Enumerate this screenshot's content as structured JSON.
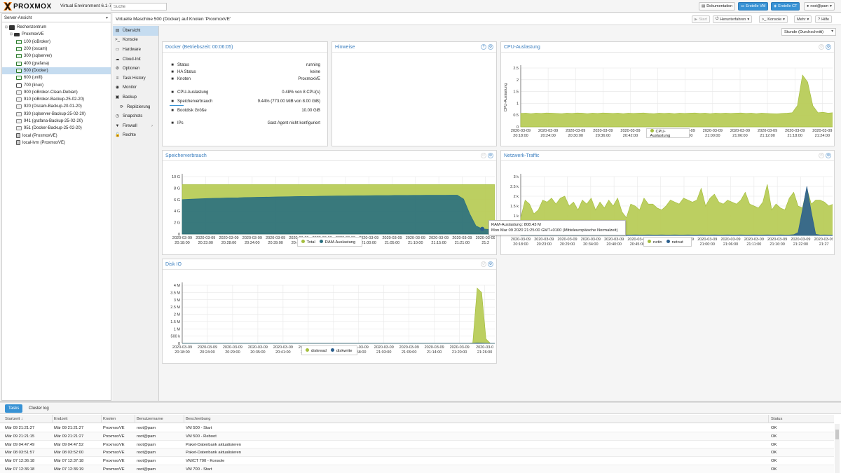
{
  "header": {
    "logo_text": "PROXMOX",
    "version": "Virtual Environment 6.1-7",
    "search_placeholder": "Suche",
    "buttons": {
      "docs": "Dokumentation",
      "create_vm": "Erstelle VM",
      "create_ct": "Erstelle CT",
      "user": "root@pam"
    }
  },
  "tree": {
    "view_select": "Server-Ansicht",
    "datacenter": "Rechenzentrum",
    "node": "ProxmoxVE",
    "vms": [
      {
        "label": "100 (ioBroker)",
        "state": "run"
      },
      {
        "label": "200 (oscam)",
        "state": "run"
      },
      {
        "label": "300 (sqlserver)",
        "state": "run"
      },
      {
        "label": "400 (grafana)",
        "state": "run"
      },
      {
        "label": "500 (Docker)",
        "state": "run",
        "selected": true
      },
      {
        "label": "600 (unifi)",
        "state": "run"
      },
      {
        "label": "700 (linux)",
        "state": "stop"
      },
      {
        "label": "900 (ioBroker-Clean-Debian)",
        "state": "tpl"
      },
      {
        "label": "910 (ioBroker-Backup-25-02-20)",
        "state": "tpl"
      },
      {
        "label": "920 (Oscam-Backup-20-01-20)",
        "state": "tpl"
      },
      {
        "label": "930 (sqlserver-Backup-25-02-20)",
        "state": "tpl"
      },
      {
        "label": "941 (grafana-Backup-25-02-20)",
        "state": "tpl"
      },
      {
        "label": "951 (Docker-Backup-25-02-20)",
        "state": "tpl"
      }
    ],
    "storages": [
      "local (ProxmoxVE)",
      "local-lvm (ProxmoxVE)"
    ]
  },
  "toolbar": {
    "title": "Virtuelle Maschine 500 (Docker) auf Knoten 'ProxmoxVE'",
    "start": "Start",
    "shutdown": "Herunterfahren",
    "console": "Konsole",
    "more": "Mehr",
    "help": "Hilfe"
  },
  "subnav": [
    {
      "label": "Übersicht",
      "icon": "book-icon",
      "glyph": "▤"
    },
    {
      "label": "Konsole",
      "icon": "terminal-icon",
      "glyph": ">_"
    },
    {
      "label": "Hardware",
      "icon": "desktop-icon",
      "glyph": "▭"
    },
    {
      "label": "Cloud-Init",
      "icon": "cloud-icon",
      "glyph": "☁"
    },
    {
      "label": "Optionen",
      "icon": "gear-icon",
      "glyph": "⚙"
    },
    {
      "label": "Task History",
      "icon": "list-icon",
      "glyph": "≡"
    },
    {
      "label": "Monitor",
      "icon": "eye-icon",
      "glyph": "◉"
    },
    {
      "label": "Backup",
      "icon": "floppy-icon",
      "glyph": "▣"
    },
    {
      "label": "Replizierung",
      "icon": "retweet-icon",
      "glyph": "⟳"
    },
    {
      "label": "Snapshots",
      "icon": "history-icon",
      "glyph": "◷"
    },
    {
      "label": "Firewall",
      "icon": "shield-icon",
      "glyph": "▼"
    },
    {
      "label": "Rechte",
      "icon": "unlock-icon",
      "glyph": "🔓"
    }
  ],
  "timeframe": "Stunde (Durchschnitt)",
  "status_panel": {
    "title": "Docker (Betriebszeit: 00:06:05)",
    "rows": [
      {
        "icon": "info-icon",
        "label": "Status",
        "value": "running"
      },
      {
        "icon": "heartbeat-icon",
        "label": "HA Status",
        "value": "keine"
      },
      {
        "icon": "building-icon",
        "label": "Knoten",
        "value": "ProxmoxVE"
      },
      {
        "icon": "cpu-icon",
        "label": "CPU-Auslastung",
        "value": "0.48% von 8 CPU(s)"
      },
      {
        "icon": "memory-icon",
        "label": "Speicherverbrauch",
        "value": "9.44% (773.00 MiB von 8.00 GiB)"
      },
      {
        "icon": "hdd-icon",
        "label": "Bootdisk Größe",
        "value": "10.00 GiB"
      },
      {
        "icon": "exchange-icon",
        "label": "IPs",
        "value": "Gast Agent nicht konfiguriert"
      }
    ]
  },
  "notes_panel": {
    "title": "Hinweise"
  },
  "tooltip": {
    "line1": "RAM-Auslastung: 808.43 M",
    "line2": "Mon Mar 09 2020 21:25:00 GMT+0100 (Mitteleuropäische Normalzeit)"
  },
  "colors": {
    "green": "#a5be3e",
    "green_fill": "#b8cc58",
    "teal": "#2a6f80",
    "navy": "#2b5f8e",
    "accent": "#3892d4"
  },
  "chart_data": [
    {
      "type": "area",
      "title": "CPU-Auslastung",
      "ylabel": "CPU-Auslastung",
      "ylim": [
        0,
        2.5
      ],
      "yticks": [
        "0",
        "0.5",
        "1",
        "1.5",
        "2",
        "2.5"
      ],
      "xticks": [
        "2020-03-09\n20:18:00",
        "2020-03-09\n20:24:00",
        "2020-03-09\n20:30:00",
        "2020-03-09\n20:36:00",
        "2020-03-09\n20:42:00",
        "2020-03-09\n20:48:00",
        "2020-03-09\n20:54:00",
        "2020-03-09\n21:00:00",
        "2020-03-09\n21:06:00",
        "2020-03-09\n21:12:00",
        "2020-03-09\n21:18:00",
        "2020-03-09\n21:24:00"
      ],
      "grid": true,
      "series": [
        {
          "name": "CPU-Auslastung",
          "color": "#a5be3e",
          "values": [
            0.57,
            0.58,
            0.56,
            0.58,
            0.57,
            0.59,
            0.58,
            0.57,
            0.56,
            0.58,
            0.57,
            0.59,
            0.58,
            0.56,
            0.58,
            0.57,
            0.59,
            0.58,
            0.57,
            0.58,
            0.56,
            0.58,
            0.57,
            0.58,
            0.59,
            0.57,
            0.56,
            0.58,
            0.57,
            0.58,
            0.56,
            0.58,
            0.57,
            0.58,
            0.59,
            0.57,
            0.58,
            0.56,
            0.58,
            0.57,
            0.58,
            0.57,
            0.58,
            0.59,
            0.57,
            0.58,
            0.56,
            0.58,
            0.57,
            0.56,
            0.55,
            0.57,
            0.58,
            0.6,
            0.9,
            2.2,
            1.9,
            0.9,
            0.6,
            0.62,
            0.58,
            0.6
          ]
        }
      ]
    },
    {
      "type": "area",
      "title": "Speicherverbrauch",
      "ylim": [
        0,
        10
      ],
      "yunit": "G",
      "yticks": [
        "0",
        "2 G",
        "4 G",
        "6 G",
        "8 G",
        "10 G"
      ],
      "xticks": [
        "2020-03-09\n20:18:00",
        "2020-03-09\n20:23:00",
        "2020-03-09\n20:28:00",
        "2020-03-09\n20:34:00",
        "2020-03-09\n20:39:00",
        "2020-03-09\n20:44:00",
        "2020-03-09\n20:49:00",
        "2020-03-09\n20:55:00",
        "2020-03-09\n21:00:00",
        "2020-03-09\n21:05:00",
        "2020-03-09\n21:10:00",
        "2020-03-09\n21:15:00",
        "2020-03-09\n21:21:00",
        "2020-03-09\n21:2"
      ],
      "grid": true,
      "series": [
        {
          "name": "Total",
          "color": "#a5be3e",
          "values": [
            8.6,
            8.6,
            8.6,
            8.6,
            8.6,
            8.6,
            8.6,
            8.6,
            8.6,
            8.6,
            8.6,
            8.6,
            8.6,
            8.6,
            8.6,
            8.6,
            8.6,
            8.6,
            8.6,
            8.6,
            8.6,
            8.6,
            8.6,
            8.6,
            8.6,
            8.6,
            8.6,
            8.6,
            8.6,
            8.6,
            8.6,
            8.6,
            8.6,
            8.6,
            8.6,
            8.6,
            8.6,
            8.6,
            8.6,
            8.6,
            8.6,
            8.6,
            8.6,
            8.6,
            8.6,
            8.6,
            8.6,
            8.6,
            8.6,
            8.6,
            8.6
          ]
        },
        {
          "name": "RAM-Auslastung",
          "color": "#2a6f80",
          "values": [
            6.0,
            6.05,
            6.1,
            6.15,
            6.2,
            6.22,
            6.25,
            6.28,
            6.3,
            6.32,
            6.35,
            6.38,
            6.4,
            6.42,
            6.44,
            6.46,
            6.48,
            6.5,
            6.52,
            6.54,
            6.55,
            6.56,
            6.58,
            6.6,
            6.62,
            6.63,
            6.64,
            6.65,
            6.66,
            6.67,
            6.68,
            6.69,
            6.7,
            6.7,
            6.72,
            6.72,
            6.73,
            6.74,
            6.74,
            6.75,
            6.75,
            6.76,
            6.76,
            6.77,
            6.77,
            6.1,
            3.5,
            1.4,
            0.9,
            0.8,
            0.8
          ]
        }
      ]
    },
    {
      "type": "area",
      "title": "Netzwerk-Traffic",
      "ylim": [
        0,
        3000
      ],
      "yticks": [
        "500",
        "1 k",
        "1.5 k",
        "2 k",
        "2.5 k",
        "3 k"
      ],
      "xticks": [
        "2020-03-09\n20:18:00",
        "2020-03-09\n20:23:00",
        "2020-03-09\n20:29:00",
        "2020-03-09\n20:34:00",
        "2020-03-09\n20:40:00",
        "2020-03-09\n20:45:00",
        "2020-03-09\n20:50:00",
        "2020-03-09\n20:55:00",
        "2020-03-09\n21:00:00",
        "2020-03-09\n21:06:00",
        "2020-03-09\n21:11:00",
        "2020-03-09\n21:16:00",
        "2020-03-09\n21:22:00",
        "2020-03-09\n21:27"
      ],
      "grid": true,
      "series": [
        {
          "name": "netin",
          "color": "#a5be3e",
          "values": [
            900,
            1800,
            1600,
            1100,
            1300,
            1800,
            1700,
            1900,
            1600,
            1900,
            2000,
            1500,
            1700,
            1300,
            1800,
            1600,
            1900,
            1300,
            1700,
            1400,
            1800,
            1500,
            1900,
            1200,
            900,
            1600,
            1500,
            1300,
            1900,
            1600,
            1600,
            1400,
            1300,
            1500,
            1800,
            1700,
            1600,
            1900,
            1800,
            1700,
            1800,
            2400,
            1500,
            1900,
            2100,
            1700,
            1600,
            1800,
            1700,
            1600,
            1800,
            2200,
            1600,
            1500,
            1400,
            1700,
            2600,
            1300,
            1600,
            1400,
            1300,
            1900,
            2200,
            1500,
            1400,
            2400,
            1600,
            1800,
            1800,
            1700,
            1500,
            1600
          ]
        },
        {
          "name": "netout",
          "color": "#2b5f8e",
          "values": [
            20,
            20,
            30,
            20,
            20,
            30,
            20,
            20,
            30,
            20,
            20,
            30,
            20,
            20,
            30,
            20,
            20,
            30,
            20,
            20,
            30,
            20,
            20,
            30,
            20,
            20,
            30,
            20,
            20,
            30,
            20,
            20,
            30,
            20,
            20,
            30,
            20,
            20,
            30,
            20,
            20,
            30,
            20,
            20,
            30,
            20,
            20,
            30,
            20,
            20,
            30,
            20,
            20,
            30,
            20,
            20,
            30,
            20,
            20,
            30,
            20,
            20,
            40,
            150,
            1300,
            2500,
            1200,
            60,
            20,
            30,
            20,
            20
          ]
        }
      ]
    },
    {
      "type": "area",
      "title": "Disk IO",
      "ylim": [
        0,
        4000000
      ],
      "yticks": [
        "0",
        "500 k",
        "1 M",
        "1.5 M",
        "2 M",
        "2.5 M",
        "3 M",
        "3.5 M",
        "4 M"
      ],
      "xticks": [
        "2020-03-09\n20:18:00",
        "2020-03-09\n20:24:00",
        "2020-03-09\n20:29:00",
        "2020-03-09\n20:35:00",
        "2020-03-09\n20:41:00",
        "2020-03-09\n20:46:00",
        "2020-03-09\n20:52:00",
        "2020-03-09\n20:58:00",
        "2020-03-09\n21:03:00",
        "2020-03-09\n21:09:00",
        "2020-03-09\n21:14:00",
        "2020-03-09\n21:20:00",
        "2020-03-0\n21:26:00"
      ],
      "grid": true,
      "series": [
        {
          "name": "diskread",
          "color": "#a5be3e",
          "values": [
            0,
            0,
            0,
            0,
            0,
            0,
            0,
            0,
            0,
            0,
            0,
            0,
            0,
            0,
            0,
            0,
            0,
            0,
            0,
            0,
            0,
            0,
            0,
            0,
            0,
            0,
            0,
            0,
            0,
            0,
            0,
            0,
            0,
            0,
            0,
            0,
            0,
            0,
            0,
            0,
            0,
            0,
            0,
            0,
            0,
            0,
            0,
            0,
            0,
            0,
            0,
            0,
            0,
            0,
            0,
            0,
            0,
            0,
            0,
            0,
            0,
            0,
            0,
            0,
            0,
            0,
            30000,
            3800000,
            3500000,
            300000,
            0,
            0
          ]
        },
        {
          "name": "diskwrite",
          "color": "#2b5f8e",
          "values": [
            0,
            0,
            0,
            0,
            0,
            0,
            0,
            0,
            0,
            0,
            0,
            0,
            0,
            0,
            0,
            0,
            0,
            0,
            0,
            0,
            0,
            0,
            0,
            0,
            0,
            0,
            0,
            0,
            0,
            0,
            0,
            0,
            0,
            0,
            0,
            0,
            0,
            0,
            0,
            0,
            0,
            0,
            0,
            0,
            0,
            0,
            0,
            0,
            0,
            0,
            0,
            0,
            0,
            0,
            0,
            0,
            0,
            0,
            0,
            0,
            0,
            0,
            0,
            0,
            0,
            0,
            5000,
            30000,
            20000,
            10000,
            0,
            0
          ]
        }
      ]
    }
  ],
  "tasks": {
    "tabs": [
      "Tasks",
      "Cluster log"
    ],
    "columns": [
      "Startzeit ↓",
      "Endzeit",
      "Knoten",
      "Benutzername",
      "Beschreibung",
      "Status"
    ],
    "rows": [
      [
        "Mär 09 21:21:27",
        "Mär 09 21:21:27",
        "ProxmoxVE",
        "root@pam",
        "VM 500 - Start",
        "OK"
      ],
      [
        "Mär 09 21:21:15",
        "Mär 09 21:21:27",
        "ProxmoxVE",
        "root@pam",
        "VM 500 - Reboot",
        "OK"
      ],
      [
        "Mär 09 04:47:49",
        "Mär 09 04:47:52",
        "ProxmoxVE",
        "root@pam",
        "Paket-Datenbank aktualisieren",
        "OK"
      ],
      [
        "Mär 08 03:51:57",
        "Mär 08 03:52:00",
        "ProxmoxVE",
        "root@pam",
        "Paket-Datenbank aktualisieren",
        "OK"
      ],
      [
        "Mär 07 12:36:18",
        "Mär 07 12:37:18",
        "ProxmoxVE",
        "root@pam",
        "VM/CT 700 - Konsole",
        "OK"
      ],
      [
        "Mär 07 12:36:18",
        "Mär 07 12:36:19",
        "ProxmoxVE",
        "root@pam",
        "VM 700 - Start",
        "OK"
      ]
    ]
  }
}
